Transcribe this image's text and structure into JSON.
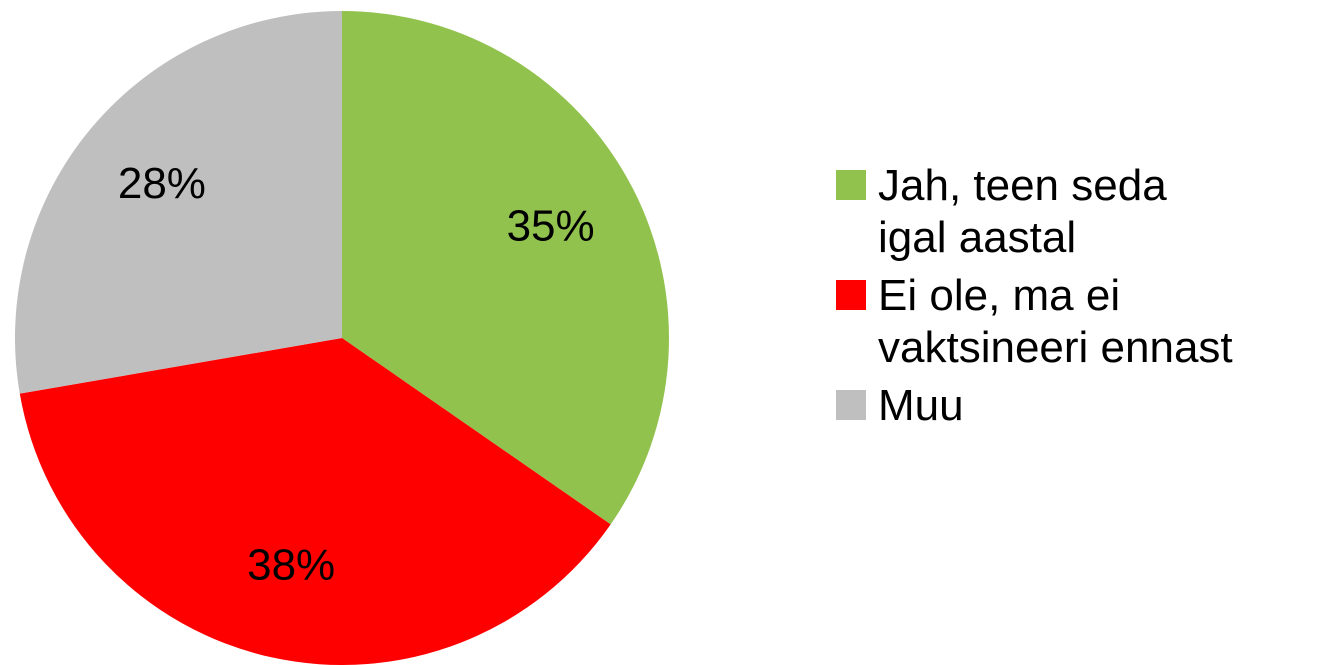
{
  "chart_data": {
    "type": "pie",
    "categories": [
      "Jah, teen seda igal aastal",
      "Ei ole, ma ei vaktsineeri ennast",
      "Muu"
    ],
    "values": [
      35,
      38,
      28
    ],
    "value_labels": [
      "35%",
      "38%",
      "28%"
    ],
    "colors": [
      "#92c24e",
      "#ff0000",
      "#bfbfbf"
    ],
    "legend": "right"
  }
}
